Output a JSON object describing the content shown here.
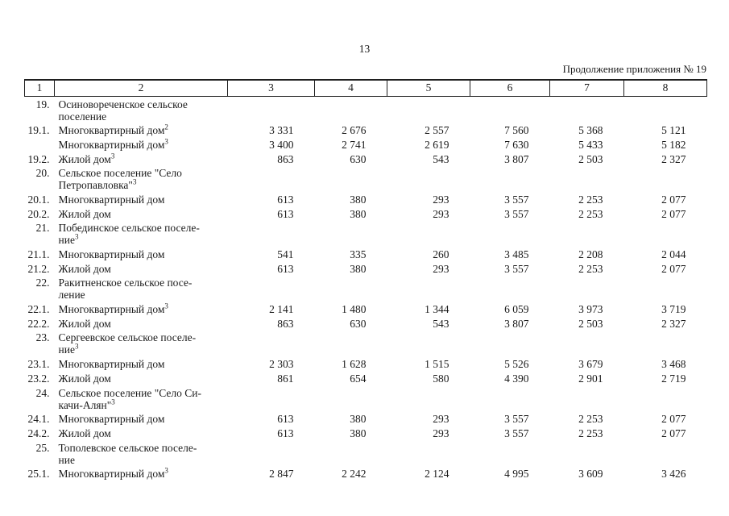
{
  "page": {
    "number": "13",
    "continuation": "Продолжение приложения № 19"
  },
  "colors": {
    "ink": "#1a1a1a",
    "background": "#ffffff",
    "border": "#1f1f1f"
  },
  "table": {
    "header_cols": [
      "1",
      "2",
      "3",
      "4",
      "5",
      "6",
      "7",
      "8"
    ],
    "rows": [
      {
        "num": "19.",
        "name_lines": [
          "Осиновореченское сельское",
          "поселение"
        ],
        "sup": "",
        "values": [
          "",
          "",
          "",
          "",
          "",
          ""
        ]
      },
      {
        "num": "19.1.",
        "name_lines": [
          "Многоквартирный дом"
        ],
        "sup": "2",
        "values": [
          "3 331",
          "2 676",
          "2 557",
          "7 560",
          "5 368",
          "5 121"
        ]
      },
      {
        "num": "",
        "name_lines": [
          "Многоквартирный дом"
        ],
        "sup": "3",
        "values": [
          "3 400",
          "2 741",
          "2 619",
          "7 630",
          "5 433",
          "5 182"
        ]
      },
      {
        "num": "19.2.",
        "name_lines": [
          "Жилой дом"
        ],
        "sup": "3",
        "values": [
          "863",
          "630",
          "543",
          "3 807",
          "2 503",
          "2 327"
        ]
      },
      {
        "num": "20.",
        "name_lines": [
          "Сельское поселение \"Село",
          "Петропавловка\""
        ],
        "sup": "3",
        "values": [
          "",
          "",
          "",
          "",
          "",
          ""
        ]
      },
      {
        "num": "20.1.",
        "name_lines": [
          "Многоквартирный дом"
        ],
        "sup": "",
        "values": [
          "613",
          "380",
          "293",
          "3 557",
          "2 253",
          "2 077"
        ]
      },
      {
        "num": "20.2.",
        "name_lines": [
          "Жилой дом"
        ],
        "sup": "",
        "values": [
          "613",
          "380",
          "293",
          "3 557",
          "2 253",
          "2 077"
        ]
      },
      {
        "num": "21.",
        "name_lines": [
          "Побединское сельское поселе-",
          "ние"
        ],
        "sup": "3",
        "values": [
          "",
          "",
          "",
          "",
          "",
          ""
        ]
      },
      {
        "num": "21.1.",
        "name_lines": [
          "Многоквартирный дом"
        ],
        "sup": "",
        "values": [
          "541",
          "335",
          "260",
          "3 485",
          "2 208",
          "2 044"
        ]
      },
      {
        "num": "21.2.",
        "name_lines": [
          "Жилой дом"
        ],
        "sup": "",
        "values": [
          "613",
          "380",
          "293",
          "3 557",
          "2 253",
          "2 077"
        ]
      },
      {
        "num": "22.",
        "name_lines": [
          "Ракитненское сельское посе-",
          "ление"
        ],
        "sup": "",
        "values": [
          "",
          "",
          "",
          "",
          "",
          ""
        ]
      },
      {
        "num": "22.1.",
        "name_lines": [
          "Многоквартирный дом"
        ],
        "sup": "3",
        "values": [
          "2 141",
          "1 480",
          "1 344",
          "6 059",
          "3 973",
          "3 719"
        ]
      },
      {
        "num": "22.2.",
        "name_lines": [
          "Жилой дом"
        ],
        "sup": "",
        "values": [
          "863",
          "630",
          "543",
          "3 807",
          "2 503",
          "2 327"
        ]
      },
      {
        "num": "23.",
        "name_lines": [
          "Сергеевское сельское поселе-",
          "ние"
        ],
        "sup": "3",
        "values": [
          "",
          "",
          "",
          "",
          "",
          ""
        ]
      },
      {
        "num": "23.1.",
        "name_lines": [
          "Многоквартирный дом"
        ],
        "sup": "",
        "values": [
          "2 303",
          "1 628",
          "1 515",
          "5 526",
          "3 679",
          "3 468"
        ]
      },
      {
        "num": "23.2.",
        "name_lines": [
          "Жилой дом"
        ],
        "sup": "",
        "values": [
          "861",
          "654",
          "580",
          "4 390",
          "2 901",
          "2 719"
        ]
      },
      {
        "num": "24.",
        "name_lines": [
          "Сельское поселение \"Село Си-",
          "качи-Алян\""
        ],
        "sup": "3",
        "values": [
          "",
          "",
          "",
          "",
          "",
          ""
        ]
      },
      {
        "num": "24.1.",
        "name_lines": [
          "Многоквартирный дом"
        ],
        "sup": "",
        "values": [
          "613",
          "380",
          "293",
          "3 557",
          "2 253",
          "2 077"
        ]
      },
      {
        "num": "24.2.",
        "name_lines": [
          "Жилой дом"
        ],
        "sup": "",
        "values": [
          "613",
          "380",
          "293",
          "3 557",
          "2 253",
          "2 077"
        ]
      },
      {
        "num": "25.",
        "name_lines": [
          "Тополевское сельское поселе-",
          "ние"
        ],
        "sup": "",
        "values": [
          "",
          "",
          "",
          "",
          "",
          ""
        ]
      },
      {
        "num": "25.1.",
        "name_lines": [
          "Многоквартирный дом"
        ],
        "sup": "3",
        "values": [
          "2 847",
          "2 242",
          "2 124",
          "4 995",
          "3 609",
          "3 426"
        ]
      }
    ]
  }
}
